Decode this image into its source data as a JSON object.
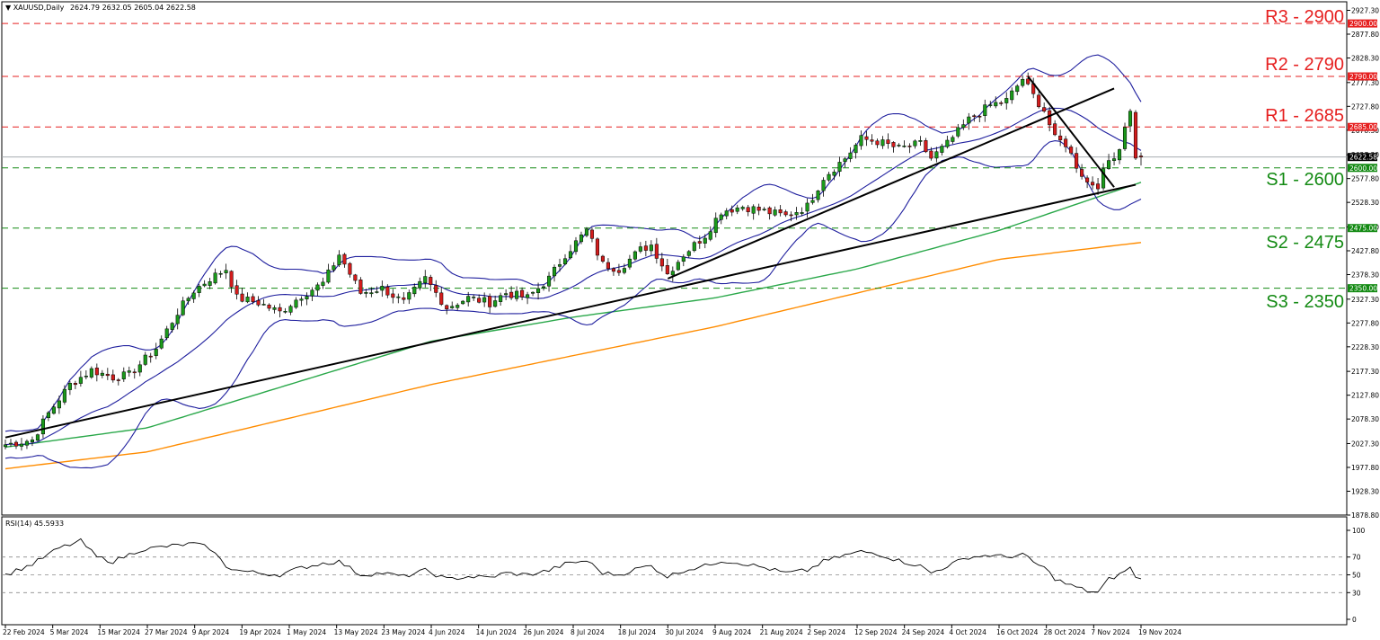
{
  "header": {
    "symbol_title": "XAUUSD,Daily",
    "ohlc": "2624.79 2632.05 2605.04 2622.58",
    "rsi_label": "RSI(14) 45.5933"
  },
  "levels": [
    {
      "label": "R3 - 2900",
      "value": 2900,
      "tag": "2900.00",
      "type": "resistance"
    },
    {
      "label": "R2 - 2790",
      "value": 2790,
      "tag": "2790.00",
      "type": "resistance"
    },
    {
      "label": "R1 - 2685",
      "value": 2685,
      "tag": "2685.00",
      "type": "resistance"
    },
    {
      "label": "S1 - 2600",
      "value": 2600,
      "tag": "2600.00",
      "type": "support"
    },
    {
      "label": "S2 - 2475",
      "value": 2475,
      "tag": "2475.00",
      "type": "support"
    },
    {
      "label": "S3 - 2350",
      "value": 2350,
      "tag": "2350.00",
      "type": "support"
    }
  ],
  "current_price": {
    "value": 2622.58,
    "tag": "2622.58"
  },
  "colors": {
    "resistance": "#e62020",
    "support": "#138a13",
    "bull": "#1a9a1a",
    "bear": "#d41c1c",
    "bollinger": "#1f1f9e",
    "ma100": "#2aa84a",
    "ma200": "#ff8c00",
    "trendline": "#000000"
  },
  "chart_data": {
    "type": "candlestick",
    "symbol": "XAUUSD",
    "timeframe": "Daily",
    "y_ticks": [
      "2927.30",
      "2877.80",
      "2828.30",
      "2777.30",
      "2727.80",
      "2678.30",
      "2627.30",
      "2577.80",
      "2528.30",
      "2477.30",
      "2427.80",
      "2378.30",
      "2327.30",
      "2277.80",
      "2228.30",
      "2177.30",
      "2127.80",
      "2078.30",
      "2027.30",
      "1977.80",
      "1928.30",
      "1878.80"
    ],
    "y_range": [
      1878.8,
      2945
    ],
    "x_labels": [
      "22 Feb 2024",
      "5 Mar 2024",
      "15 Mar 2024",
      "27 Mar 2024",
      "9 Apr 2024",
      "19 Apr 2024",
      "1 May 2024",
      "13 May 2024",
      "23 May 2024",
      "4 Jun 2024",
      "14 Jun 2024",
      "26 Jun 2024",
      "8 Jul 2024",
      "18 Jul 2024",
      "30 Jul 2024",
      "9 Aug 2024",
      "21 Aug 2024",
      "2 Sep 2024",
      "12 Sep 2024",
      "24 Sep 2024",
      "4 Oct 2024",
      "16 Oct 2024",
      "28 Oct 2024",
      "7 Nov 2024",
      "19 Nov 2024"
    ],
    "close_anchors": [
      {
        "i": 0,
        "v": 2025
      },
      {
        "i": 5,
        "v": 2035
      },
      {
        "i": 8,
        "v": 2090
      },
      {
        "i": 12,
        "v": 2150
      },
      {
        "i": 16,
        "v": 2180
      },
      {
        "i": 20,
        "v": 2165
      },
      {
        "i": 23,
        "v": 2170
      },
      {
        "i": 28,
        "v": 2225
      },
      {
        "i": 32,
        "v": 2300
      },
      {
        "i": 35,
        "v": 2345
      },
      {
        "i": 38,
        "v": 2370
      },
      {
        "i": 41,
        "v": 2390
      },
      {
        "i": 43,
        "v": 2330
      },
      {
        "i": 47,
        "v": 2320
      },
      {
        "i": 51,
        "v": 2300
      },
      {
        "i": 55,
        "v": 2335
      },
      {
        "i": 59,
        "v": 2360
      },
      {
        "i": 62,
        "v": 2420
      },
      {
        "i": 66,
        "v": 2340
      },
      {
        "i": 70,
        "v": 2350
      },
      {
        "i": 74,
        "v": 2320
      },
      {
        "i": 78,
        "v": 2370
      },
      {
        "i": 82,
        "v": 2310
      },
      {
        "i": 86,
        "v": 2330
      },
      {
        "i": 90,
        "v": 2320
      },
      {
        "i": 93,
        "v": 2340
      },
      {
        "i": 97,
        "v": 2330
      },
      {
        "i": 101,
        "v": 2370
      },
      {
        "i": 104,
        "v": 2420
      },
      {
        "i": 108,
        "v": 2470
      },
      {
        "i": 111,
        "v": 2400
      },
      {
        "i": 114,
        "v": 2390
      },
      {
        "i": 118,
        "v": 2430
      },
      {
        "i": 120,
        "v": 2440
      },
      {
        "i": 123,
        "v": 2380
      },
      {
        "i": 126,
        "v": 2420
      },
      {
        "i": 130,
        "v": 2460
      },
      {
        "i": 133,
        "v": 2510
      },
      {
        "i": 137,
        "v": 2520
      },
      {
        "i": 141,
        "v": 2510
      },
      {
        "i": 145,
        "v": 2500
      },
      {
        "i": 149,
        "v": 2520
      },
      {
        "i": 152,
        "v": 2580
      },
      {
        "i": 156,
        "v": 2620
      },
      {
        "i": 159,
        "v": 2660
      },
      {
        "i": 162,
        "v": 2655
      },
      {
        "i": 166,
        "v": 2640
      },
      {
        "i": 170,
        "v": 2650
      },
      {
        "i": 172,
        "v": 2620
      },
      {
        "i": 175,
        "v": 2650
      },
      {
        "i": 179,
        "v": 2700
      },
      {
        "i": 183,
        "v": 2730
      },
      {
        "i": 186,
        "v": 2740
      },
      {
        "i": 189,
        "v": 2785
      },
      {
        "i": 191,
        "v": 2750
      },
      {
        "i": 193,
        "v": 2720
      },
      {
        "i": 195,
        "v": 2660
      },
      {
        "i": 197,
        "v": 2650
      },
      {
        "i": 199,
        "v": 2605
      },
      {
        "i": 201,
        "v": 2570
      },
      {
        "i": 203,
        "v": 2565
      },
      {
        "i": 205,
        "v": 2615
      },
      {
        "i": 207,
        "v": 2640
      },
      {
        "i": 208,
        "v": 2690
      },
      {
        "i": 209,
        "v": 2715
      },
      {
        "i": 210,
        "v": 2625
      },
      {
        "i": 211,
        "v": 2622.58
      }
    ],
    "bollinger_period": 20,
    "moving_averages": [
      {
        "period": 100,
        "values_approx": [
          2020,
          2060,
          2150,
          2240,
          2290,
          2330,
          2390,
          2470,
          2570
        ]
      },
      {
        "period": 200,
        "values_approx": [
          1975,
          2010,
          2080,
          2150,
          2210,
          2270,
          2340,
          2410,
          2445
        ]
      }
    ],
    "trendlines": [
      {
        "from": {
          "date": "22 Feb 2024",
          "v": 2040
        },
        "to": {
          "date": "21 Nov 2024",
          "v": 2565
        }
      },
      {
        "from": {
          "date": "30 Jul 2024",
          "v": 2370
        },
        "to": {
          "date": "14 Nov 2024",
          "v": 2765
        }
      },
      {
        "from": {
          "date": "31 Oct 2024",
          "v": 2790
        },
        "to": {
          "date": "14 Nov 2024",
          "v": 2560
        }
      }
    ],
    "rsi": {
      "period": 14,
      "last": 45.5933,
      "levels": [
        70,
        50,
        30
      ],
      "y_ticks": [
        "100",
        "70",
        "50",
        "30",
        "0"
      ],
      "anchors": [
        {
          "i": 0,
          "v": 50
        },
        {
          "i": 5,
          "v": 62
        },
        {
          "i": 10,
          "v": 80
        },
        {
          "i": 14,
          "v": 88
        },
        {
          "i": 17,
          "v": 70
        },
        {
          "i": 20,
          "v": 65
        },
        {
          "i": 25,
          "v": 78
        },
        {
          "i": 30,
          "v": 82
        },
        {
          "i": 35,
          "v": 85
        },
        {
          "i": 38,
          "v": 80
        },
        {
          "i": 41,
          "v": 60
        },
        {
          "i": 43,
          "v": 55
        },
        {
          "i": 47,
          "v": 52
        },
        {
          "i": 51,
          "v": 50
        },
        {
          "i": 55,
          "v": 58
        },
        {
          "i": 59,
          "v": 63
        },
        {
          "i": 62,
          "v": 65
        },
        {
          "i": 66,
          "v": 50
        },
        {
          "i": 70,
          "v": 52
        },
        {
          "i": 74,
          "v": 48
        },
        {
          "i": 78,
          "v": 55
        },
        {
          "i": 82,
          "v": 45
        },
        {
          "i": 86,
          "v": 48
        },
        {
          "i": 90,
          "v": 47
        },
        {
          "i": 93,
          "v": 52
        },
        {
          "i": 97,
          "v": 50
        },
        {
          "i": 101,
          "v": 55
        },
        {
          "i": 104,
          "v": 62
        },
        {
          "i": 108,
          "v": 66
        },
        {
          "i": 111,
          "v": 52
        },
        {
          "i": 114,
          "v": 50
        },
        {
          "i": 118,
          "v": 58
        },
        {
          "i": 120,
          "v": 60
        },
        {
          "i": 123,
          "v": 48
        },
        {
          "i": 126,
          "v": 55
        },
        {
          "i": 130,
          "v": 60
        },
        {
          "i": 133,
          "v": 66
        },
        {
          "i": 137,
          "v": 63
        },
        {
          "i": 141,
          "v": 58
        },
        {
          "i": 145,
          "v": 52
        },
        {
          "i": 149,
          "v": 55
        },
        {
          "i": 152,
          "v": 65
        },
        {
          "i": 156,
          "v": 72
        },
        {
          "i": 159,
          "v": 76
        },
        {
          "i": 162,
          "v": 74
        },
        {
          "i": 166,
          "v": 66
        },
        {
          "i": 170,
          "v": 60
        },
        {
          "i": 172,
          "v": 52
        },
        {
          "i": 175,
          "v": 60
        },
        {
          "i": 179,
          "v": 70
        },
        {
          "i": 183,
          "v": 72
        },
        {
          "i": 186,
          "v": 70
        },
        {
          "i": 189,
          "v": 73
        },
        {
          "i": 191,
          "v": 64
        },
        {
          "i": 193,
          "v": 58
        },
        {
          "i": 195,
          "v": 46
        },
        {
          "i": 197,
          "v": 40
        },
        {
          "i": 199,
          "v": 36
        },
        {
          "i": 201,
          "v": 32
        },
        {
          "i": 203,
          "v": 30
        },
        {
          "i": 205,
          "v": 45
        },
        {
          "i": 207,
          "v": 50
        },
        {
          "i": 208,
          "v": 55
        },
        {
          "i": 209,
          "v": 58
        },
        {
          "i": 210,
          "v": 46
        },
        {
          "i": 211,
          "v": 45.6
        }
      ]
    }
  }
}
